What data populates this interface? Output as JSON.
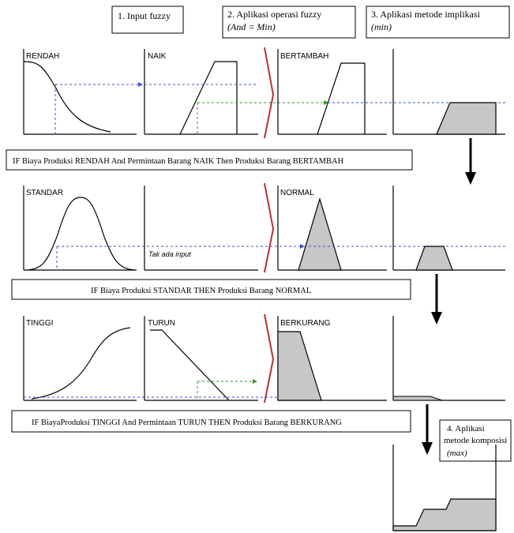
{
  "steps": {
    "step1": "1. Input fuzzy",
    "step2_line1": "2. Aplikasi operasi fuzzy",
    "step2_line2": "(And = Min)",
    "step3_line1": "3. Aplikasi metode implikasi",
    "step3_line2": "(min)",
    "step4_line1": "4. Aplikasi",
    "step4_line2": "metode komposisi",
    "step4_line3": "(max)"
  },
  "rules": {
    "rule1": "IF Biaya Produksi RENDAH And Permintaan Barang NAIK Then Produksi Barang BERTAMBAH",
    "rule2": "IF Biaya Produksi STANDAR THEN Produksi Barang NORMAL",
    "rule3": "IF BiayaProduksi TINGGI And Permintaan TURUN THEN Produksi Barang BERKURANG"
  },
  "sets": {
    "rendah": "RENDAH",
    "naik": "NAIK",
    "bertambah": "BERTAMBAH",
    "standar": "STANDAR",
    "normal": "NORMAL",
    "tinggi": "TINGGI",
    "turun": "TURUN",
    "berkurang": "BERKURANG"
  },
  "notes": {
    "no_input": "Tak ada input"
  },
  "colors": {
    "line": "#000000",
    "guide_blue": "#3b4fd6",
    "guide_green": "#2e9a2e",
    "fill_gray": "#c7c7c7",
    "separator_red": "#b5332e"
  }
}
